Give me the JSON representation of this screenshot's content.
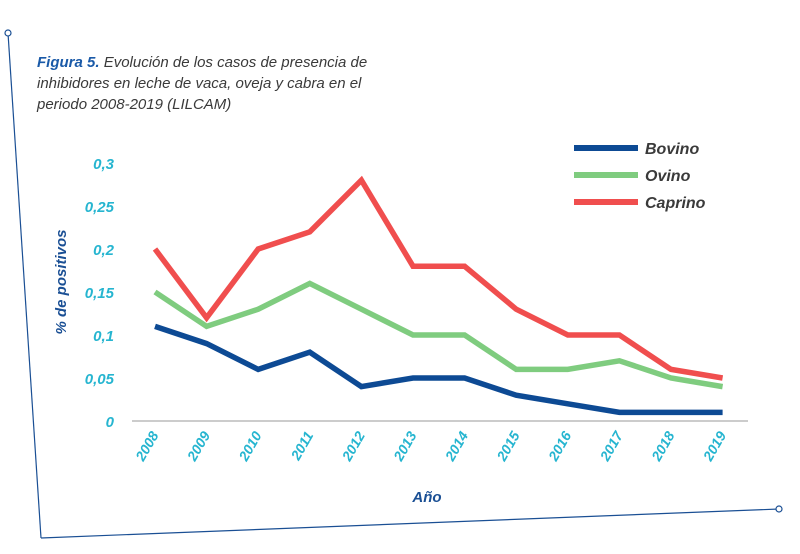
{
  "caption": {
    "figure_label": "Figura 5.",
    "text": "Evolución de los casos de presencia de inhibidores en leche de vaca, oveja y cabra en el periodo 2008-2019 (LILCAM)"
  },
  "colors": {
    "axis_tick": "#26b5d0",
    "ylabel": "#1a4f94",
    "frame": "#1a4f94"
  },
  "chart_data": {
    "type": "line",
    "x": [
      "2008",
      "2009",
      "2010",
      "2011",
      "2012",
      "2013",
      "2014",
      "2015",
      "2016",
      "2017",
      "2018",
      "2019"
    ],
    "yticks": [
      "0",
      "0,05",
      "0,1",
      "0,15",
      "0,2",
      "0,25",
      "0,3"
    ],
    "ylim": [
      0,
      0.3
    ],
    "xlabel": "Año",
    "ylabel": "% de positivos",
    "legend_position": "top-right",
    "grid": false,
    "series": [
      {
        "name": "Bovino",
        "color": "#0d4a94",
        "values": [
          0.11,
          0.09,
          0.06,
          0.08,
          0.04,
          0.05,
          0.05,
          0.03,
          0.02,
          0.01,
          0.01,
          0.01
        ]
      },
      {
        "name": "Ovino",
        "color": "#7fcc7f",
        "values": [
          0.15,
          0.11,
          0.13,
          0.16,
          0.13,
          0.1,
          0.1,
          0.06,
          0.06,
          0.07,
          0.05,
          0.04
        ]
      },
      {
        "name": "Caprino",
        "color": "#f04e4e",
        "values": [
          0.2,
          0.12,
          0.2,
          0.22,
          0.28,
          0.18,
          0.18,
          0.13,
          0.1,
          0.1,
          0.06,
          0.05
        ]
      }
    ]
  }
}
